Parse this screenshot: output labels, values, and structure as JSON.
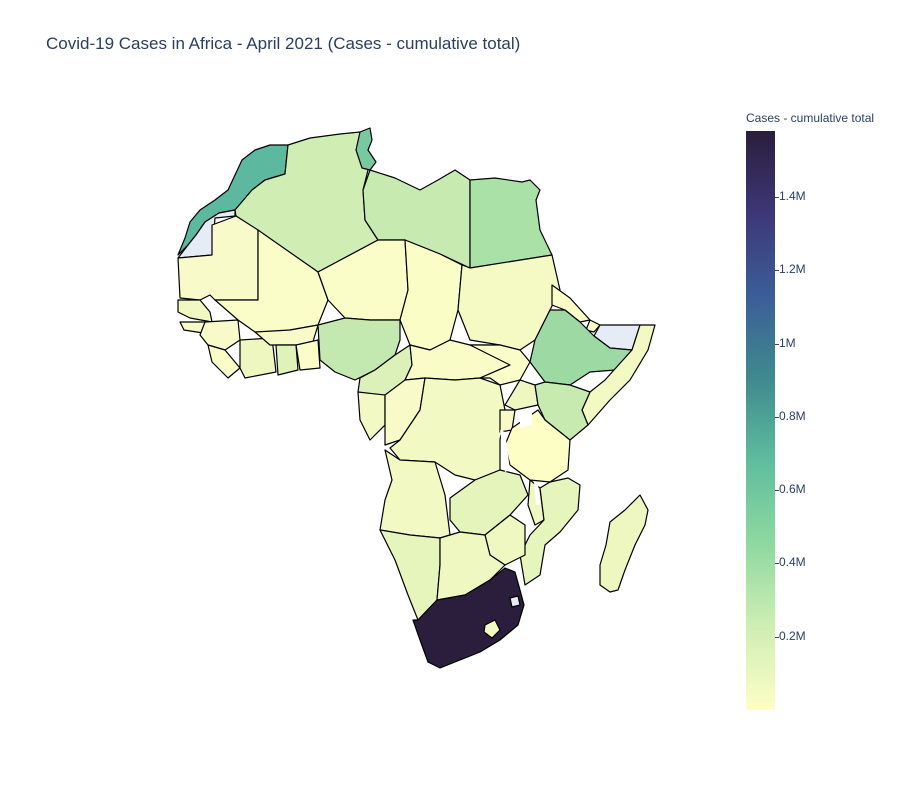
{
  "title": "Covid-19 Cases in Africa - April 2021 (Cases - cumulative total)",
  "colorbar": {
    "title": "Cases - cumulative total",
    "max_value": 1580000,
    "ticks": [
      {
        "label": "1.4M",
        "value": 1400000
      },
      {
        "label": "1.2M",
        "value": 1200000
      },
      {
        "label": "1M",
        "value": 1000000
      },
      {
        "label": "0.8M",
        "value": 800000
      },
      {
        "label": "0.6M",
        "value": 600000
      },
      {
        "label": "0.4M",
        "value": 400000
      },
      {
        "label": "0.2M",
        "value": 200000
      }
    ],
    "colorscale": [
      "#fdfec6",
      "#cfeeb4",
      "#8fd9a0",
      "#5fbd9e",
      "#3f8a8e",
      "#3b5e98",
      "#3d3778",
      "#2a1e3c"
    ]
  },
  "colors": {
    "missing": "#e5ecf6",
    "border": "#000000"
  }
}
